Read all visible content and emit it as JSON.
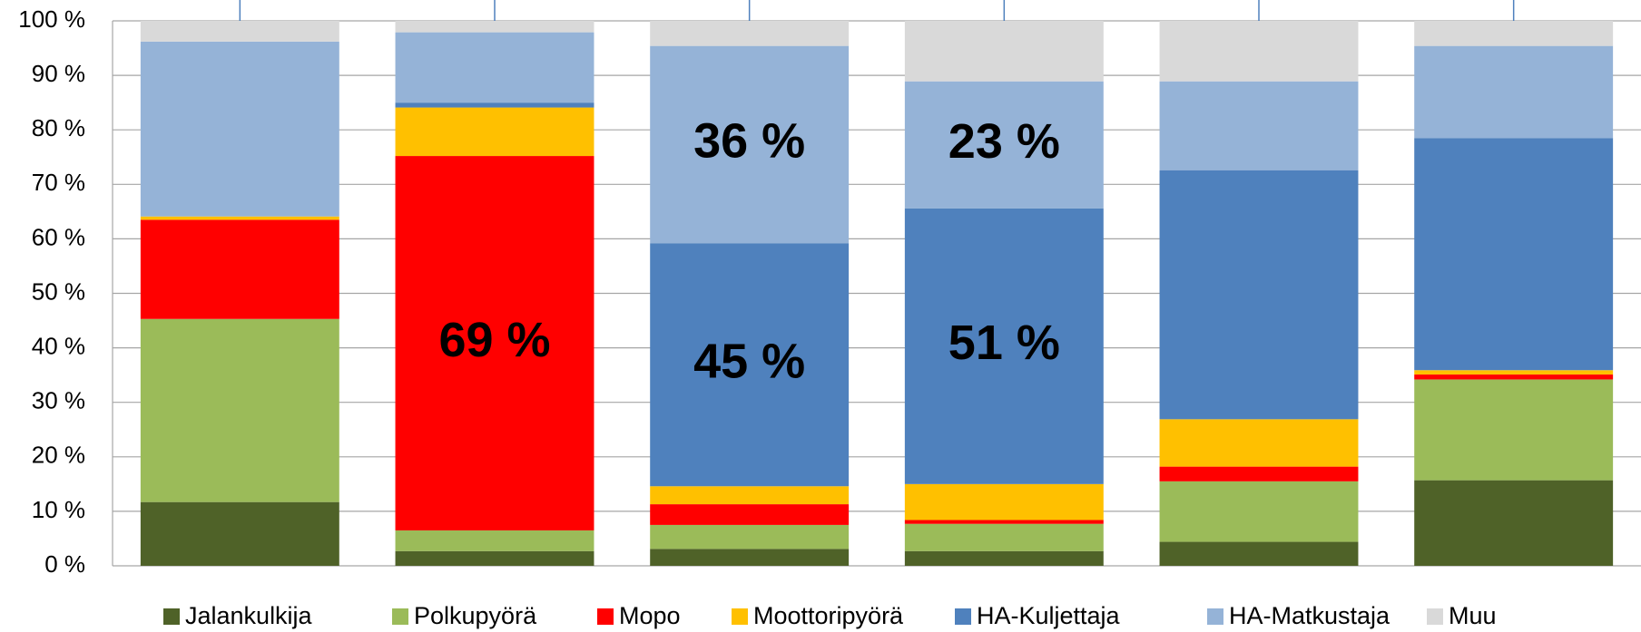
{
  "chart_data": {
    "type": "stacked_bar",
    "categories": [
      null,
      null,
      null,
      null,
      null,
      null
    ],
    "series": [
      {
        "name": "Jalankulkija",
        "color": "#4f6228",
        "values": [
          11.7,
          2.7,
          3.1,
          2.7,
          4.4,
          15.7
        ]
      },
      {
        "name": "Polkupyörä",
        "color": "#9bbb59",
        "values": [
          33.6,
          3.8,
          4.4,
          5.0,
          11.1,
          18.5
        ]
      },
      {
        "name": "Mopo",
        "color": "#ff0000",
        "values": [
          18.2,
          68.7,
          3.8,
          0.7,
          2.7,
          0.9
        ],
        "value_labels": [
          null,
          "69 %",
          null,
          null,
          null,
          null
        ]
      },
      {
        "name": "Moottoripyörä",
        "color": "#ffc000",
        "values": [
          0.6,
          8.9,
          3.3,
          6.6,
          8.7,
          0.8
        ]
      },
      {
        "name": "HA-Kuljettaja",
        "color": "#4f81bd",
        "values": [
          0,
          0.9,
          44.6,
          50.6,
          45.7,
          42.6
        ],
        "value_labels": [
          null,
          null,
          "45 %",
          "51 %",
          null,
          null
        ]
      },
      {
        "name": "HA-Matkustaja",
        "color": "#95b3d7",
        "values": [
          32.1,
          12.9,
          36.2,
          23.3,
          16.3,
          16.9
        ],
        "value_labels": [
          null,
          null,
          "36 %",
          "23 %",
          null,
          null
        ]
      },
      {
        "name": "Muu",
        "color": "#d9d9d9",
        "values": [
          3.8,
          2.1,
          4.6,
          11.1,
          11.1,
          4.6
        ]
      }
    ],
    "ylim": [
      0,
      100
    ],
    "yticks": [
      {
        "value": 0,
        "label": "0 %"
      },
      {
        "value": 10,
        "label": "10 %"
      },
      {
        "value": 20,
        "label": "20 %"
      },
      {
        "value": 30,
        "label": "30 %"
      },
      {
        "value": 40,
        "label": "40 %"
      },
      {
        "value": 50,
        "label": "50 %"
      },
      {
        "value": 60,
        "label": "60 %"
      },
      {
        "value": 70,
        "label": "70 %"
      },
      {
        "value": 80,
        "label": "80 %"
      },
      {
        "value": 90,
        "label": "90 %"
      },
      {
        "value": 100,
        "label": "100 %"
      }
    ],
    "grid": true,
    "legend": "bottom"
  }
}
